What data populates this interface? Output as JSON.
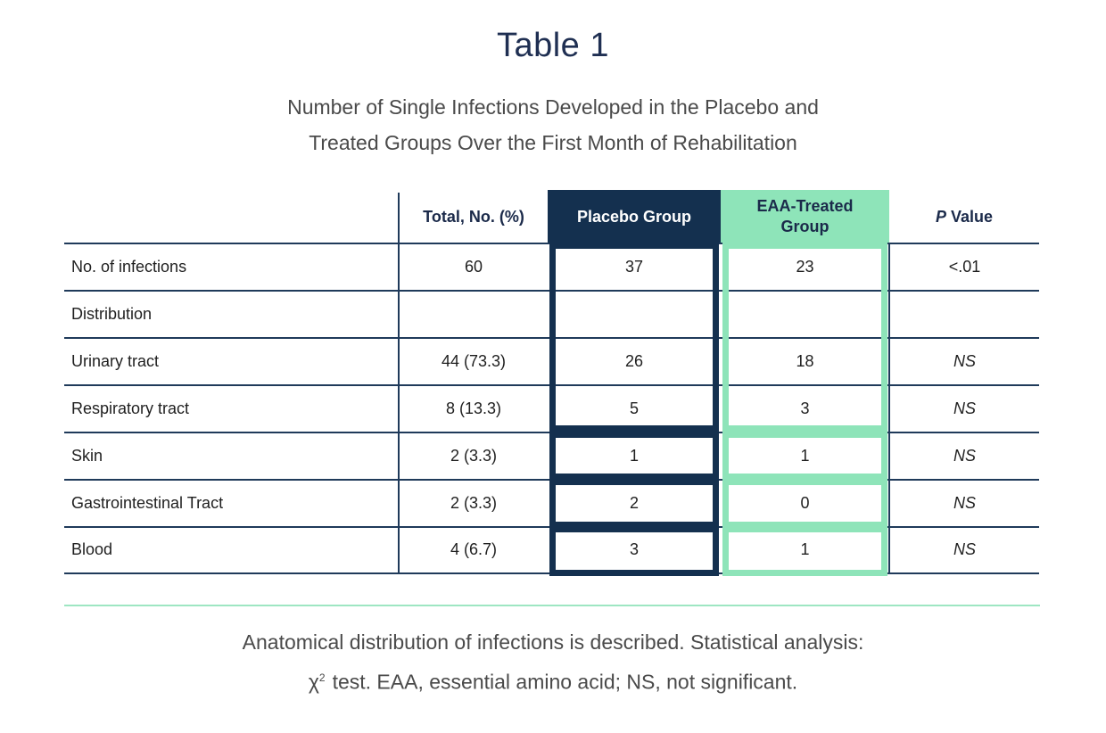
{
  "title": "Table 1",
  "subtitle_line1": "Number of Single Infections Developed in the Placebo and",
  "subtitle_line2": "Treated Groups Over the First Month of Rehabilitation",
  "headers": {
    "total": "Total, No. (%)",
    "placebo": "Placebo Group",
    "eaa_line1": "EAA-Treated",
    "eaa_line2": "Group",
    "p_italic": "P",
    "p_rest": " Value"
  },
  "rows": [
    {
      "label": "No. of infections",
      "total": "60",
      "placebo": "37",
      "eaa": "23",
      "p": "<.01"
    },
    {
      "label": "Distribution",
      "total": "",
      "placebo": "",
      "eaa": "",
      "p": ""
    },
    {
      "label": "Urinary tract",
      "total": "44 (73.3)",
      "placebo": "26",
      "eaa": "18",
      "p": "NS"
    },
    {
      "label": "Respiratory tract",
      "total": "8 (13.3)",
      "placebo": "5",
      "eaa": "3",
      "p": "NS"
    },
    {
      "label": "Skin",
      "total": "2 (3.3)",
      "placebo": "1",
      "eaa": "1",
      "p": "NS"
    },
    {
      "label": "Gastrointestinal Tract",
      "total": "2 (3.3)",
      "placebo": "2",
      "eaa": "0",
      "p": "NS"
    },
    {
      "label": "Blood",
      "total": "4 (6.7)",
      "placebo": "3",
      "eaa": "1",
      "p": "NS"
    }
  ],
  "footnote_line1": "Anatomical distribution of infections is described. Statistical analysis:",
  "footnote_chi": "χ",
  "footnote_sup": "2",
  "footnote_line2": "test. EAA, essential amino acid; NS, not significant.",
  "colors": {
    "navy": "#14304f",
    "mint": "#8ee4b9"
  }
}
